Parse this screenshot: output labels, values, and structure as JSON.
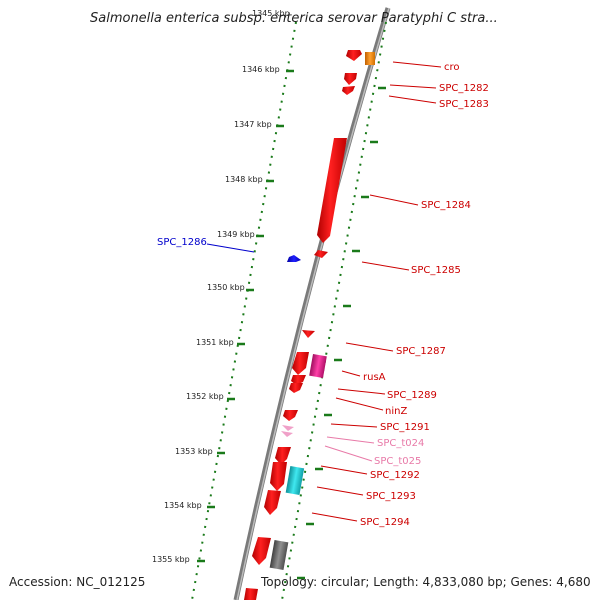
{
  "title": "Salmonella enterica subsp. enterica serovar Paratyphi C stra...",
  "footer": {
    "accession": "Accession: NC_012125",
    "summary": "Topology: circular; Length: 4,833,080 bp; Genes: 4,680"
  },
  "colors": {
    "backbone": "#808080",
    "tick": "#1a7a1a",
    "forward_gene": "#ff0000",
    "reverse_gene": "#ff0000",
    "label_red": "#cc0000",
    "label_blue": "#0000cc",
    "label_pink": "#e87aa8",
    "rusA_magenta": "#e0208a",
    "cro_orange": "#ff8c00",
    "cyan": "#20c8d0",
    "gray_feature": "#707070"
  },
  "ticks": [
    "1345 kbp",
    "1346 kbp",
    "1347 kbp",
    "1348 kbp",
    "1349 kbp",
    "1350 kbp",
    "1351 kbp",
    "1352 kbp",
    "1353 kbp",
    "1354 kbp",
    "1355 kbp"
  ],
  "labels": [
    {
      "text": "cro",
      "color": "red"
    },
    {
      "text": "SPC_1282",
      "color": "red"
    },
    {
      "text": "SPC_1283",
      "color": "red"
    },
    {
      "text": "SPC_1284",
      "color": "red"
    },
    {
      "text": "SPC_1285",
      "color": "red"
    },
    {
      "text": "SPC_1286",
      "color": "blue"
    },
    {
      "text": "SPC_1287",
      "color": "red"
    },
    {
      "text": "rusA",
      "color": "red"
    },
    {
      "text": "SPC_1289",
      "color": "red"
    },
    {
      "text": "ninZ",
      "color": "red"
    },
    {
      "text": "SPC_1291",
      "color": "red"
    },
    {
      "text": "SPC_t024",
      "color": "pink"
    },
    {
      "text": "SPC_t025",
      "color": "pink"
    },
    {
      "text": "SPC_1292",
      "color": "red"
    },
    {
      "text": "SPC_1293",
      "color": "red"
    },
    {
      "text": "SPC_1294",
      "color": "red"
    }
  ]
}
